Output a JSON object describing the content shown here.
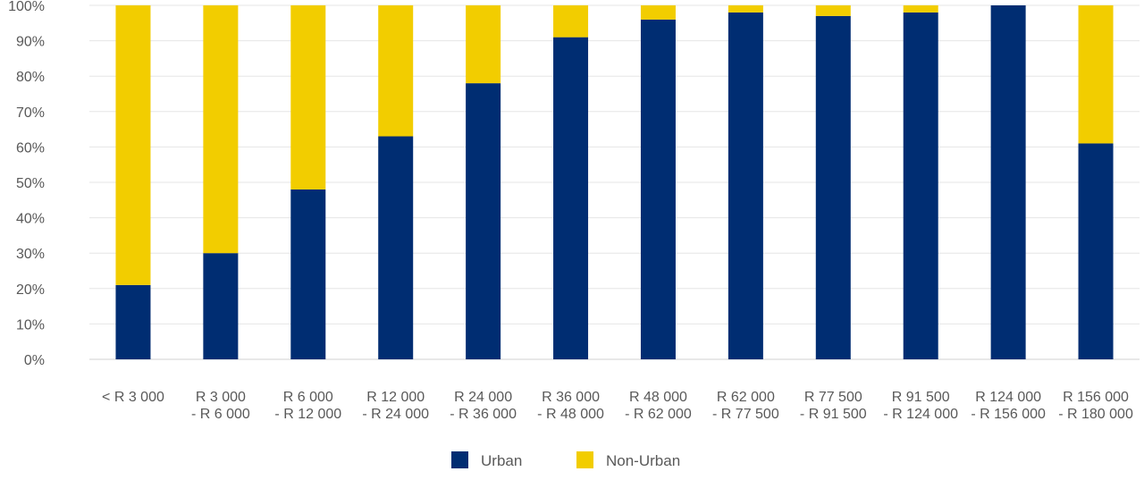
{
  "chart_data": {
    "type": "bar",
    "stacked": true,
    "percent": true,
    "categories": [
      [
        "< R 3 000"
      ],
      [
        "R 3 000",
        "- R 6 000"
      ],
      [
        "R 6 000",
        "- R 12 000"
      ],
      [
        "R 12 000",
        "- R 24 000"
      ],
      [
        "R 24 000",
        "- R 36 000"
      ],
      [
        "R 36 000",
        "- R 48 000"
      ],
      [
        "R 48 000",
        "- R 62 000"
      ],
      [
        "R 62 000",
        "- R 77 500"
      ],
      [
        "R 77 500",
        "- R 91 500"
      ],
      [
        "R 91 500",
        "- R 124 000"
      ],
      [
        "R 124 000",
        "- R 156 000"
      ],
      [
        "R 156 000",
        "- R 180 000"
      ]
    ],
    "series": [
      {
        "name": "Urban",
        "color": "#002D72",
        "values": [
          21,
          30,
          48,
          63,
          78,
          91,
          96,
          98,
          97,
          98,
          100,
          61
        ]
      },
      {
        "name": "Non-Urban",
        "color": "#F2CD00",
        "values": [
          79,
          70,
          52,
          37,
          22,
          9,
          4,
          2,
          3,
          2,
          0,
          39
        ]
      }
    ],
    "yticks": [
      "0%",
      "10%",
      "20%",
      "30%",
      "40%",
      "50%",
      "60%",
      "70%",
      "80%",
      "90%",
      "100%"
    ],
    "ylim": [
      0,
      100
    ],
    "grid": true,
    "legend": "bottom-center"
  }
}
